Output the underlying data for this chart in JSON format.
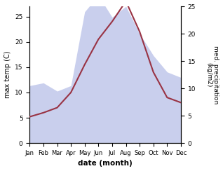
{
  "months": [
    "Jan",
    "Feb",
    "Mar",
    "Apr",
    "May",
    "Jun",
    "Jul",
    "Aug",
    "Sep",
    "Oct",
    "Nov",
    "Dec"
  ],
  "x": [
    1,
    2,
    3,
    4,
    5,
    6,
    7,
    8,
    9,
    10,
    11,
    12
  ],
  "precipitation": [
    10.5,
    11.0,
    9.5,
    10.5,
    24.0,
    27.0,
    23.0,
    25.0,
    20.0,
    16.0,
    13.0,
    12.0
  ],
  "temperature": [
    5.2,
    6.0,
    7.0,
    10.0,
    15.5,
    20.5,
    24.0,
    28.0,
    22.0,
    14.0,
    9.0,
    8.0
  ],
  "precip_fill_color": "#b8c0e8",
  "temp_color": "#993344",
  "ylabel_left": "max temp (C)",
  "ylabel_right": "med. precipitation\n(kg/m2)",
  "xlabel": "date (month)",
  "ylim_left": [
    0,
    27
  ],
  "ylim_right": [
    0,
    25
  ],
  "yticks_left": [
    0,
    5,
    10,
    15,
    20,
    25
  ],
  "yticks_right": [
    0,
    5,
    10,
    15,
    20,
    25
  ],
  "background_color": "#ffffff"
}
